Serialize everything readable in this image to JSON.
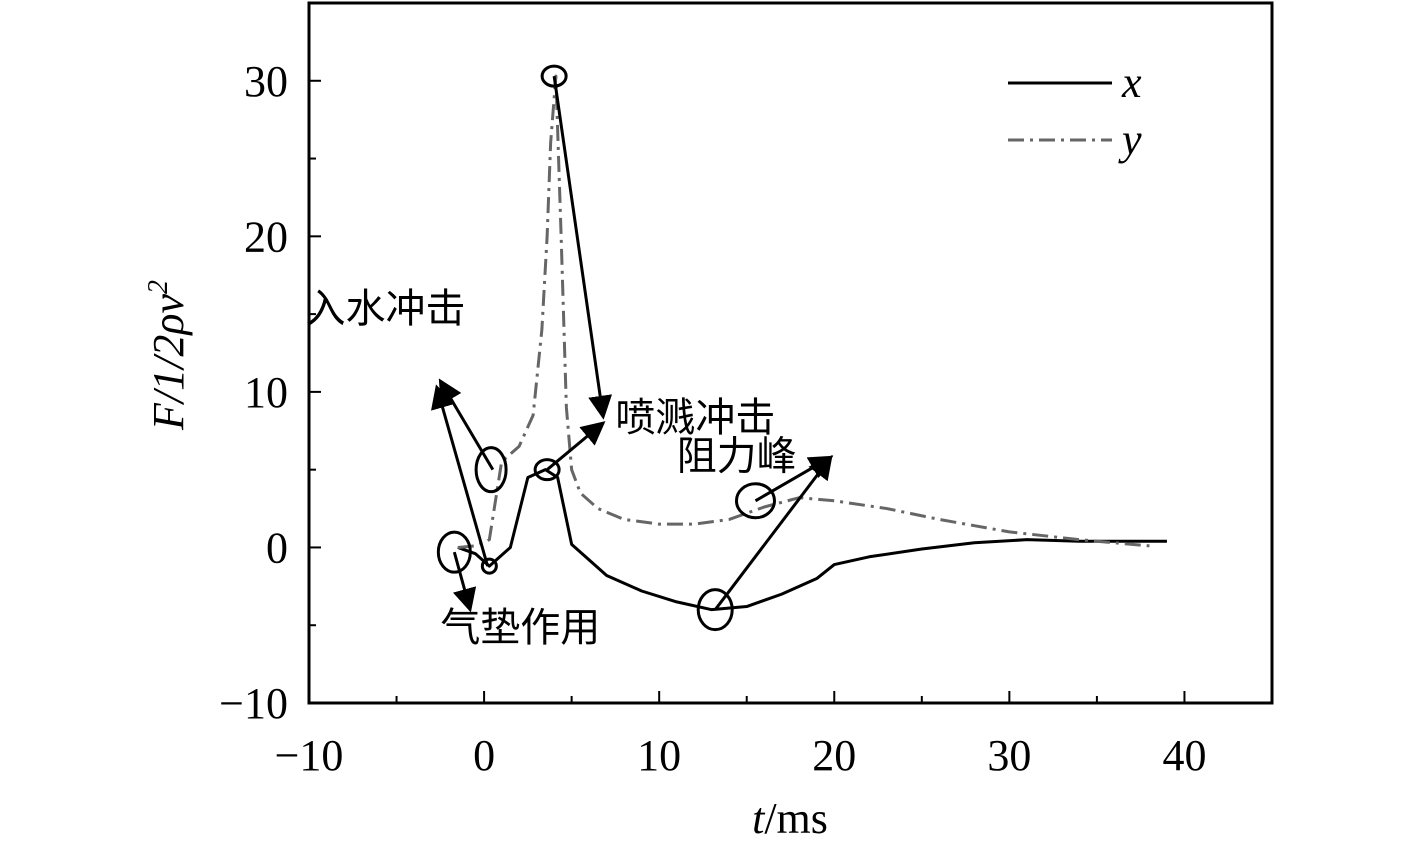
{
  "chart_data": {
    "type": "line",
    "title": "",
    "xlabel": {
      "var": "t",
      "unit": "/ms"
    },
    "ylabel": {
      "text": "F/1/2ρv",
      "superscript": "2"
    },
    "xlim": [
      -10,
      45
    ],
    "ylim": [
      -10,
      35
    ],
    "xticks": [
      -10,
      0,
      10,
      20,
      30,
      40
    ],
    "xtick_labels": [
      "−10",
      "0",
      "10",
      "20",
      "30",
      "40"
    ],
    "yticks": [
      -10,
      0,
      10,
      20,
      30
    ],
    "ytick_labels": [
      "−10",
      "0",
      "10",
      "20",
      "30"
    ],
    "legend_position": "top-right",
    "series": [
      {
        "name": "x",
        "style": "solid",
        "color": "#000000",
        "x": [
          -1.5,
          -0.5,
          0.3,
          1.5,
          2.5,
          3.5,
          4.2,
          5.0,
          7.0,
          9.0,
          11.0,
          13.0,
          15.0,
          17.0,
          19.0,
          20.0,
          22.0,
          25.0,
          28.0,
          31.0,
          34.0,
          37.0,
          39.0
        ],
        "values": [
          0,
          -0.4,
          -1.2,
          0,
          4.5,
          5.0,
          4.5,
          0.2,
          -1.8,
          -2.8,
          -3.5,
          -4.0,
          -3.8,
          -3.0,
          -2.0,
          -1.1,
          -0.6,
          -0.1,
          0.3,
          0.5,
          0.4,
          0.4,
          0.4
        ]
      },
      {
        "name": "y",
        "style": "dash-dot",
        "color": "#666666",
        "x": [
          -1.5,
          -0.5,
          0.3,
          1.0,
          2.0,
          2.8,
          3.3,
          3.6,
          3.8,
          4.1,
          4.4,
          4.7,
          5.0,
          5.5,
          6.5,
          8.0,
          10.0,
          12.0,
          14.0,
          16.0,
          18.0,
          20.0,
          23.0,
          26.0,
          30.0,
          34.0,
          38.0
        ],
        "values": [
          0,
          0.1,
          0.5,
          5.5,
          6.5,
          8.5,
          14.0,
          20.0,
          26.0,
          30.3,
          20.0,
          9.0,
          5.0,
          3.5,
          2.5,
          1.8,
          1.5,
          1.5,
          1.8,
          2.6,
          3.2,
          3.0,
          2.5,
          1.8,
          1.0,
          0.5,
          0.1
        ]
      }
    ],
    "annotations": [
      {
        "text": "入水冲击",
        "label_x": -10.2,
        "label_y": 14.5,
        "arrows": [
          [
            0.5,
            5.0,
            -2.5,
            10.7
          ],
          [
            0.2,
            -1.2,
            -2.7,
            10.3
          ]
        ]
      },
      {
        "text": "喷溅冲击",
        "label_x": 7.5,
        "label_y": 7.5,
        "arrows": [
          [
            4.0,
            30.3,
            6.8,
            8.4
          ],
          [
            3.6,
            5.0,
            6.8,
            8.0
          ]
        ]
      },
      {
        "text": "阻力峰",
        "label_x": 11.0,
        "label_y": 5.0,
        "label_x_offset_tick": 0,
        "arrows": [
          [
            15.5,
            3.0,
            19.8,
            5.8
          ],
          [
            13.2,
            -4.0,
            19.8,
            5.8
          ]
        ]
      },
      {
        "text": "气垫作用",
        "label_x": -2.5,
        "label_y": -6.0,
        "arrows": [
          [
            -1.7,
            -0.3,
            -0.8,
            -4.0
          ]
        ]
      }
    ],
    "highlight_ellipses": [
      {
        "x": -1.7,
        "y": -0.3
      },
      {
        "x": 0.4,
        "y": 5.0
      },
      {
        "x": 0.3,
        "y": -1.2
      },
      {
        "x": 3.6,
        "y": 5.0
      },
      {
        "x": 4.0,
        "y": 30.3
      },
      {
        "x": 15.5,
        "y": 3.0
      },
      {
        "x": 13.2,
        "y": -4.0
      }
    ]
  }
}
